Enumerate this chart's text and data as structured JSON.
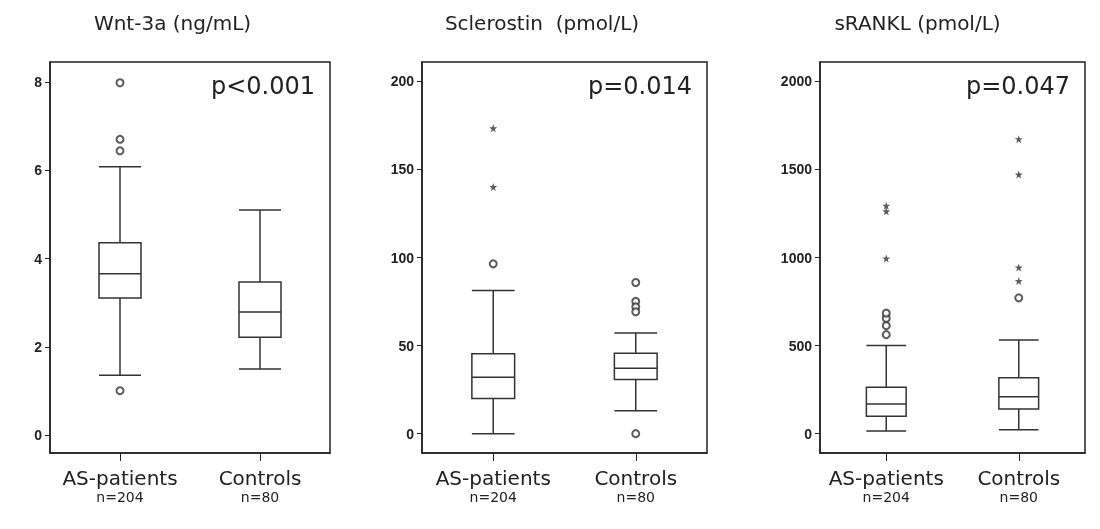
{
  "chart_data": [
    {
      "type": "box",
      "title": "Wnt-3a (ng/mL)",
      "categories": [
        "AS-patients\nn=204",
        "Controls\nn=80"
      ],
      "ylim": [
        -0.4,
        8.45
      ],
      "yticks": [
        0,
        2,
        4,
        6,
        8
      ],
      "grid": false,
      "annotations": [
        "p<0.001"
      ],
      "color": "#333333",
      "boxes": [
        {
          "low": 1.36,
          "q1": 3.11,
          "median": 3.66,
          "q3": 4.36,
          "high": 6.08,
          "outliers": [
            7.98,
            6.7,
            6.44,
            1.01
          ]
        },
        {
          "low": 1.5,
          "q1": 2.22,
          "median": 2.79,
          "q3": 3.47,
          "high": 5.1
        }
      ]
    },
    {
      "type": "box",
      "title": "Sclerostin  (pmol/L)",
      "categories": [
        "AS-patients\nn=204",
        "Controls\nn=80"
      ],
      "ylim": [
        -11,
        211
      ],
      "yticks": [
        0,
        50,
        100,
        150,
        200
      ],
      "grid": false,
      "annotations": [
        "p=0.014"
      ],
      "color": "#333333",
      "boxes": [
        {
          "low": 0,
          "q1": 20,
          "median": 32,
          "q3": 45.4,
          "high": 81.2,
          "outliers": [
            96.4
          ]
        },
        {
          "low": 13,
          "q1": 30.7,
          "median": 37.1,
          "q3": 45.7,
          "high": 57.1,
          "outliers": [
            85.8,
            75.1,
            72,
            69.2,
            0
          ]
        }
      ],
      "series": [
        {
          "type": "scatter",
          "marker": "star",
          "color": "#333333",
          "x": [
            "AS-patients\nn=204",
            "AS-patients\nn=204"
          ],
          "values": [
            140,
            173.4
          ]
        }
      ]
    },
    {
      "type": "box",
      "title": "sRANKL (pmol/L)",
      "categories": [
        "AS-patients\nn=204",
        "Controls\nn=80"
      ],
      "ylim": [
        -110,
        2110
      ],
      "yticks": [
        0,
        500,
        1000,
        1500,
        2000
      ],
      "grid": false,
      "annotations": [
        "p=0.047"
      ],
      "color": "#333333",
      "boxes": [
        {
          "low": 15,
          "q1": 98,
          "median": 168,
          "q3": 264,
          "high": 501,
          "outliers": [
            562,
            613,
            655,
            684
          ]
        },
        {
          "low": 22,
          "q1": 140,
          "median": 210,
          "q3": 317,
          "high": 532,
          "outliers": [
            771
          ]
        }
      ],
      "series": [
        {
          "type": "scatter",
          "marker": "star",
          "color": "#333333",
          "x": [
            "AS-patients\nn=204",
            "AS-patients\nn=204",
            "AS-patients\nn=204"
          ],
          "values": [
            994,
            1262,
            1294
          ]
        },
        {
          "type": "scatter",
          "marker": "star",
          "color": "#333333",
          "x": [
            "Controls\nn=80",
            "Controls\nn=80",
            "Controls\nn=80",
            "Controls\nn=80"
          ],
          "values": [
            866,
            943,
            1471,
            1672
          ]
        }
      ]
    }
  ]
}
